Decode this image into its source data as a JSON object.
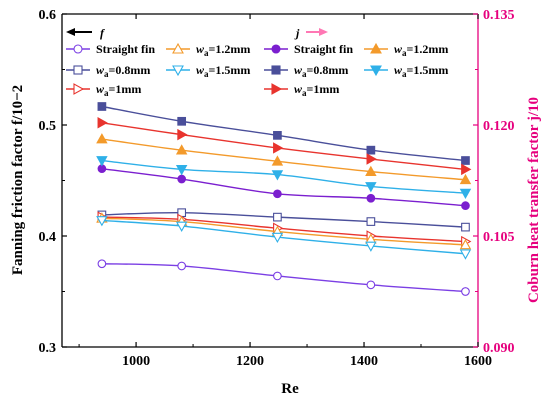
{
  "chart_data": {
    "type": "line",
    "x": [
      940,
      1080,
      1248,
      1412,
      1578
    ],
    "xlabel": "Re",
    "xlim": [
      870,
      1600
    ],
    "xticks": [
      "1000",
      "1200",
      "1400",
      "1600"
    ],
    "left_axis": {
      "label": "Fanning friction factor f/10−2",
      "ylim": [
        0.3,
        0.6
      ],
      "ticks": [
        "0.3",
        "0.4",
        "0.5",
        "0.6"
      ],
      "color": "#000000"
    },
    "right_axis": {
      "label": "Coburn heat transfer factor j/10",
      "ylim": [
        0.09,
        0.135
      ],
      "ticks": [
        "0.090",
        "0.105",
        "0.120",
        "0.135"
      ],
      "color": "#e6007e"
    },
    "legend_headers": {
      "f": "f",
      "j": "j"
    },
    "series": [
      {
        "name": "Straight fin",
        "group": "f",
        "axis": "left",
        "color": "#7b3fe4",
        "marker": "circle",
        "filled": false,
        "values": [
          0.375,
          0.373,
          0.364,
          0.356,
          0.35
        ]
      },
      {
        "name": "wa=0.8mm",
        "group": "f",
        "axis": "left",
        "color": "#4a4f9a",
        "marker": "square",
        "filled": false,
        "values": [
          0.419,
          0.421,
          0.417,
          0.413,
          0.408
        ]
      },
      {
        "name": "wa=1mm",
        "group": "f",
        "axis": "left",
        "color": "#e8342e",
        "marker": "triangle-right",
        "filled": false,
        "values": [
          0.417,
          0.415,
          0.407,
          0.4,
          0.395
        ]
      },
      {
        "name": "wa=1.2mm",
        "group": "f",
        "axis": "left",
        "color": "#f39a2b",
        "marker": "triangle-up",
        "filled": false,
        "values": [
          0.416,
          0.413,
          0.404,
          0.397,
          0.392
        ]
      },
      {
        "name": "wa=1.5mm",
        "group": "f",
        "axis": "left",
        "color": "#2fb0e8",
        "marker": "triangle-down",
        "filled": false,
        "values": [
          0.414,
          0.409,
          0.399,
          0.391,
          0.384
        ]
      },
      {
        "name": "Straight fin",
        "group": "j",
        "axis": "right",
        "color": "#7b1fcf",
        "marker": "circle",
        "filled": true,
        "values": [
          0.1141,
          0.1127,
          0.1107,
          0.1101,
          0.1091
        ]
      },
      {
        "name": "wa=0.8mm",
        "group": "j",
        "axis": "right",
        "color": "#4a4f9a",
        "marker": "square",
        "filled": true,
        "values": [
          0.1225,
          0.1205,
          0.1186,
          0.1166,
          0.1152
        ]
      },
      {
        "name": "wa=1mm",
        "group": "j",
        "axis": "right",
        "color": "#e8342e",
        "marker": "triangle-right",
        "filled": true,
        "values": [
          0.1203,
          0.1187,
          0.1169,
          0.1154,
          0.114
        ]
      },
      {
        "name": "wa=1.2mm",
        "group": "j",
        "axis": "right",
        "color": "#f39a2b",
        "marker": "triangle-up",
        "filled": true,
        "values": [
          0.1181,
          0.1166,
          0.1151,
          0.1137,
          0.1126
        ]
      },
      {
        "name": "wa=1.5mm",
        "group": "j",
        "axis": "right",
        "color": "#2fb0e8",
        "marker": "triangle-down",
        "filled": true,
        "values": [
          0.1152,
          0.114,
          0.1133,
          0.1117,
          0.1108
        ]
      }
    ],
    "legend": {
      "placement": "top",
      "rows": [
        [
          {
            "series": 0,
            "prefix": "",
            "sub": "",
            "suffix": "Straight fin"
          },
          {
            "series": 3,
            "prefix": "w",
            "sub": "a",
            "suffix": "=1.2mm"
          },
          {
            "series": 5,
            "prefix": "",
            "sub": "",
            "suffix": "Straight fin"
          },
          {
            "series": 8,
            "prefix": "w",
            "sub": "a",
            "suffix": "=1.2mm"
          }
        ],
        [
          {
            "series": 1,
            "prefix": "",
            "sub": "",
            "suffix": "wₐ=0.8mm"
          },
          {
            "series": 4,
            "prefix": "w",
            "sub": "a",
            "suffix": "=1.5mm"
          },
          {
            "series": 6,
            "prefix": "w",
            "sub": "a",
            "suffix": "=0.8mm"
          },
          {
            "series": 9,
            "prefix": "w",
            "sub": "a",
            "suffix": "=1.5mm"
          }
        ],
        [
          {
            "series": 2,
            "prefix": "w",
            "sub": "a",
            "suffix": "=1mm"
          },
          null,
          {
            "series": 7,
            "prefix": "w",
            "sub": "a",
            "suffix": "=1mm"
          },
          null
        ]
      ]
    },
    "grid": false
  }
}
